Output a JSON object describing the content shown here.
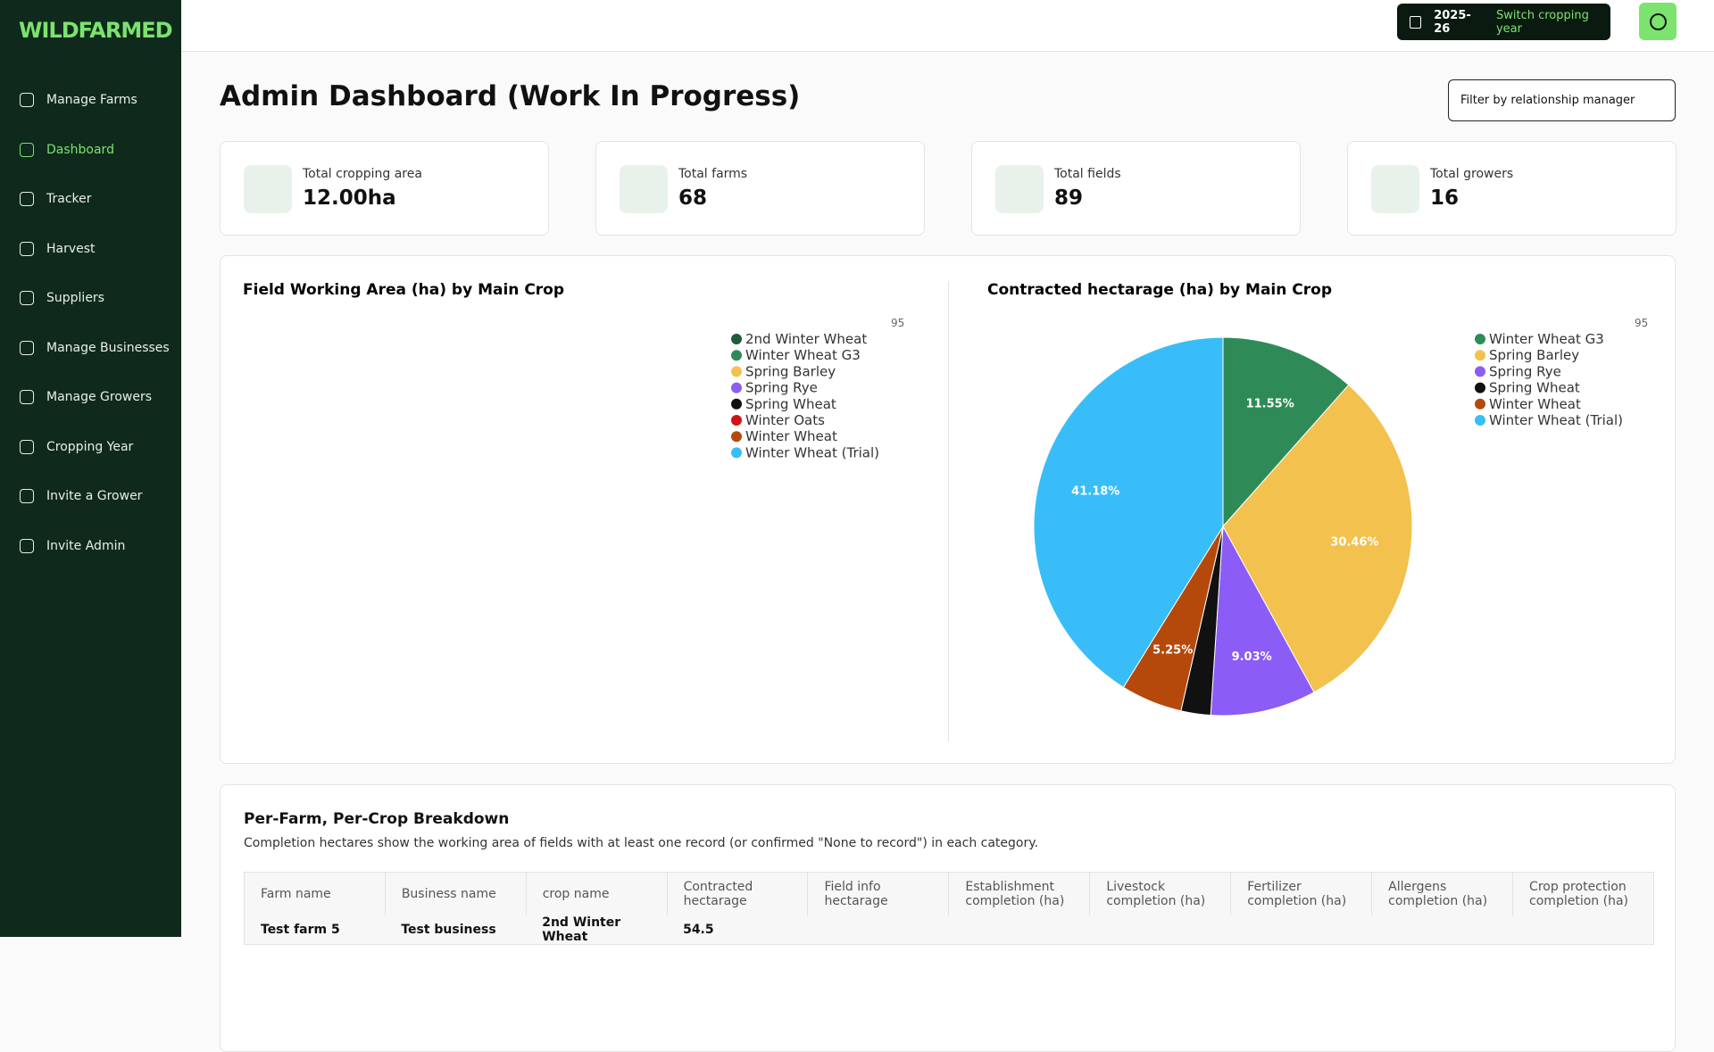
{
  "sidebar": {
    "logo": "WILDFARMED",
    "nav": [
      "Manage Farms",
      "Dashboard",
      "Tracker",
      "Harvest",
      "Suppliers",
      "Manage Businesses",
      "Manage Growers",
      "Cropping Year",
      "Invite a Grower",
      "Invite Admin"
    ],
    "active": 1
  },
  "header": {
    "year": "2025-26",
    "switch": "Switch cropping year"
  },
  "page": {
    "title": "Admin Dashboard (Work In Progress)",
    "filter": "Filter by relationship manager"
  },
  "stats": [
    {
      "label": "Total cropping area",
      "value": "12.00ha"
    },
    {
      "label": "Total farms",
      "value": "68"
    },
    {
      "label": "Total fields",
      "value": "89"
    },
    {
      "label": "Total growers",
      "value": "16"
    }
  ],
  "chart_data": [
    {
      "type": "pie",
      "title": "Field Working Area (ha) by Main Crop",
      "corner_label": "95",
      "categories": [
        "2nd Winter Wheat",
        "Winter Wheat G3",
        "Spring Barley",
        "Spring Rye",
        "Spring Wheat",
        "Winter Oats",
        "Winter Wheat",
        "Winter Wheat (Trial)"
      ],
      "colors": [
        "#1e5c3a",
        "#2e8b57",
        "#f2c14e",
        "#8b5cf6",
        "#111111",
        "#d01414",
        "#b5490b",
        "#38bdf8"
      ],
      "values": [
        null,
        null,
        null,
        null,
        null,
        null,
        null,
        null
      ]
    },
    {
      "type": "pie",
      "title": "Contracted hectarage (ha) by Main Crop",
      "corner_label": "95",
      "categories": [
        "Winter Wheat G3",
        "Spring Barley",
        "Spring Rye",
        "Spring Wheat",
        "Winter Wheat",
        "Winter Wheat (Trial)"
      ],
      "colors": [
        "#2e8b57",
        "#f2c14e",
        "#8b5cf6",
        "#111111",
        "#b5490b",
        "#38bdf8"
      ],
      "values": [
        11.55,
        30.46,
        9.03,
        2.53,
        5.25,
        41.18
      ],
      "value_labels": [
        "11.55%",
        "30.46%",
        "9.03%",
        null,
        "5.25%",
        "41.18%"
      ]
    }
  ],
  "table": {
    "title": "Per-Farm, Per-Crop Breakdown",
    "description": "Completion hectares show the working area of fields with at least one record (or confirmed \"None to record\") in each category.",
    "columns": [
      "Farm name",
      "Business name",
      "crop name",
      "Contracted hectarage",
      "Field info hectarage",
      "Establishment completion (ha)",
      "Livestock completion (ha)",
      "Fertilizer completion (ha)",
      "Allergens completion (ha)",
      "Crop protection completion (ha)"
    ],
    "rows": [
      [
        "Test farm 5",
        "Test business",
        "2nd Winter Wheat",
        "54.5"
      ]
    ]
  }
}
